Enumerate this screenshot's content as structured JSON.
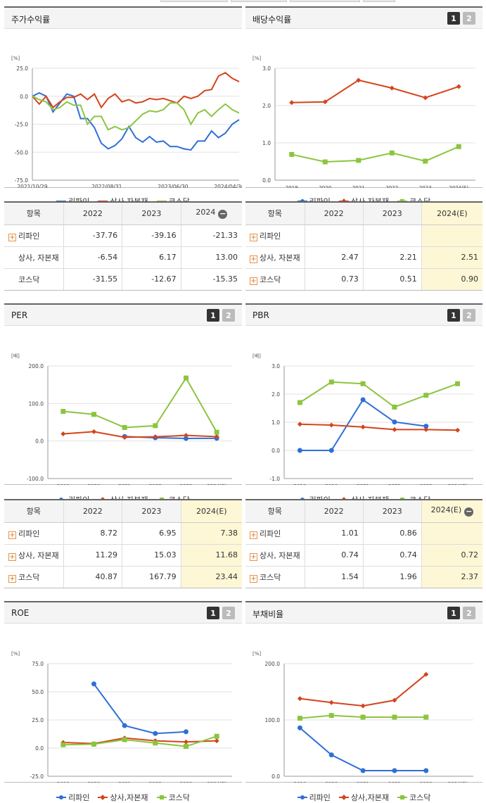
{
  "colors": {
    "series1": "#2f6fd6",
    "series2": "#d4441c",
    "series3": "#8bc53f"
  },
  "series_names": [
    "리파인",
    "상사,자본재",
    "코스닥"
  ],
  "tabs": [
    "1",
    "2"
  ],
  "charts": {
    "stock": {
      "title": "주가수익률",
      "unit": "[%]",
      "chart_data": {
        "type": "line",
        "ylim": [
          -75,
          25
        ],
        "yticks": [
          "25.0",
          "0.0",
          "-25.0",
          "-50.0",
          "-75.0"
        ],
        "xticks": [
          "2021/10/29",
          "2022/08/31",
          "2023/06/30",
          "2024/04/30"
        ],
        "series": [
          {
            "name": "리파인",
            "values": [
              0,
              3,
              0,
              -14,
              -6,
              2,
              0,
              -20,
              -20,
              -28,
              -42,
              -47,
              -44,
              -38,
              -27,
              -37,
              -41,
              -36,
              -41,
              -40,
              -45,
              -45,
              -47,
              -48,
              -40,
              -40,
              -31,
              -37,
              -33,
              -25,
              -21
            ]
          },
          {
            "name": "상사,자본재",
            "values": [
              0,
              -7,
              0,
              -10,
              -5,
              -1,
              -1,
              2,
              -3,
              2,
              -10,
              -2,
              2,
              -5,
              -3,
              -6,
              -5,
              -2,
              -3,
              -2,
              -4,
              -6,
              0,
              -2,
              0,
              5,
              6,
              18,
              21,
              16,
              13
            ]
          },
          {
            "name": "코스닥",
            "values": [
              0,
              -3,
              -5,
              -12,
              -10,
              -5,
              -8,
              -8,
              -25,
              -18,
              -18,
              -30,
              -27,
              -30,
              -28,
              -22,
              -16,
              -13,
              -14,
              -12,
              -6,
              -6,
              -12,
              -25,
              -15,
              -12,
              -18,
              -12,
              -7,
              -12,
              -15
            ]
          }
        ]
      }
    },
    "dividend": {
      "title": "배당수익률",
      "unit": "[%]",
      "chart_data": {
        "type": "line",
        "categories": [
          "2019",
          "2020",
          "2021",
          "2022",
          "2023",
          "2024(E)"
        ],
        "ylim": [
          0,
          3
        ],
        "yticks": [
          "3.0",
          "2.0",
          "1.0",
          "0.0"
        ],
        "series": [
          {
            "name": "리파인",
            "values": [
              null,
              null,
              null,
              null,
              null,
              null
            ]
          },
          {
            "name": "상사,자본재",
            "values": [
              2.08,
              2.1,
              2.68,
              2.47,
              2.21,
              2.51
            ]
          },
          {
            "name": "코스닥",
            "values": [
              0.69,
              0.49,
              0.53,
              0.73,
              0.51,
              0.9
            ]
          }
        ]
      }
    },
    "per": {
      "title": "PER",
      "unit": "[배]",
      "chart_data": {
        "type": "line",
        "categories": [
          "2019",
          "2020",
          "2021",
          "2022",
          "2023",
          "2024(E)"
        ],
        "ylim": [
          -100,
          200
        ],
        "yticks": [
          "200.0",
          "100.0",
          "0.0",
          "-100.0"
        ],
        "series": [
          {
            "name": "리파인",
            "values": [
              null,
              null,
              12,
              8.72,
              6.95,
              7.38
            ]
          },
          {
            "name": "상사,자본재",
            "values": [
              19,
              25,
              10,
              11.29,
              15.03,
              11.68
            ]
          },
          {
            "name": "코스닥",
            "values": [
              79,
              71,
              36,
              40.87,
              167.79,
              23.44
            ]
          }
        ]
      }
    },
    "pbr": {
      "title": "PBR",
      "unit": "[배]",
      "chart_data": {
        "type": "line",
        "categories": [
          "2019",
          "2020",
          "2021",
          "2022",
          "2023",
          "2024(E)"
        ],
        "ylim": [
          -1,
          3
        ],
        "yticks": [
          "3.0",
          "2.0",
          "1.0",
          "0.0",
          "-1.0"
        ],
        "series": [
          {
            "name": "리파인",
            "values": [
              0,
              0,
              1.8,
              1.01,
              0.86,
              null
            ]
          },
          {
            "name": "상사,자본재",
            "values": [
              0.93,
              0.9,
              0.83,
              0.74,
              0.74,
              0.72
            ]
          },
          {
            "name": "코스닥",
            "values": [
              1.7,
              2.43,
              2.37,
              1.54,
              1.96,
              2.37
            ]
          }
        ]
      }
    },
    "roe": {
      "title": "ROE",
      "unit": "[%]",
      "chart_data": {
        "type": "line",
        "categories": [
          "2019",
          "2020",
          "2021",
          "2022",
          "2023",
          "2024(E)"
        ],
        "ylim": [
          -25,
          75
        ],
        "yticks": [
          "75.0",
          "50.0",
          "25.0",
          "0.0",
          "-25.0"
        ],
        "series": [
          {
            "name": "리파인",
            "values": [
              null,
              57,
              20,
              13,
              14.5,
              null
            ]
          },
          {
            "name": "상사,자본재",
            "values": [
              5,
              4,
              9,
              6.5,
              5.5,
              6.5
            ]
          },
          {
            "name": "코스닥",
            "values": [
              3,
              3.5,
              7.5,
              4.5,
              1.5,
              10.5
            ]
          }
        ]
      }
    },
    "debt": {
      "title": "부채비율",
      "unit": "[%]",
      "chart_data": {
        "type": "line",
        "categories": [
          "2019",
          "2020",
          "2021",
          "2022",
          "2023",
          "2024(E)"
        ],
        "ylim": [
          0,
          200
        ],
        "yticks": [
          "200.0",
          "100.0",
          "0.0"
        ],
        "series": [
          {
            "name": "리파인",
            "values": [
              86,
              38,
              10,
              10,
              10,
              null
            ]
          },
          {
            "name": "상사,자본재",
            "values": [
              138,
              131,
              125,
              135,
              181,
              null
            ]
          },
          {
            "name": "코스닥",
            "values": [
              103,
              108,
              105,
              105,
              105,
              null
            ]
          }
        ]
      }
    }
  },
  "tables": {
    "stock": {
      "headers": [
        "항목",
        "2022",
        "2023",
        "2024"
      ],
      "rows": [
        {
          "label": "리파인",
          "plus": true,
          "values": [
            "-37.76",
            "-39.16",
            "-21.33"
          ]
        },
        {
          "label": "상사, 자본재",
          "plus": false,
          "values": [
            "-6.54",
            "6.17",
            "13.00"
          ]
        },
        {
          "label": "코스닥",
          "plus": false,
          "values": [
            "-31.55",
            "-12.67",
            "-15.35"
          ]
        }
      ]
    },
    "dividend": {
      "headers": [
        "항목",
        "2022",
        "2023",
        "2024(E)"
      ],
      "rows": [
        {
          "label": "리파인",
          "plus": true,
          "values": [
            "",
            "",
            ""
          ]
        },
        {
          "label": "상사, 자본재",
          "plus": true,
          "values": [
            "2.47",
            "2.21",
            "2.51"
          ]
        },
        {
          "label": "코스닥",
          "plus": true,
          "values": [
            "0.73",
            "0.51",
            "0.90"
          ]
        }
      ]
    },
    "per": {
      "headers": [
        "항목",
        "2022",
        "2023",
        "2024(E)"
      ],
      "rows": [
        {
          "label": "리파인",
          "plus": true,
          "values": [
            "8.72",
            "6.95",
            "7.38"
          ]
        },
        {
          "label": "상사, 자본재",
          "plus": true,
          "values": [
            "11.29",
            "15.03",
            "11.68"
          ]
        },
        {
          "label": "코스닥",
          "plus": true,
          "values": [
            "40.87",
            "167.79",
            "23.44"
          ]
        }
      ]
    },
    "pbr": {
      "headers": [
        "항목",
        "2022",
        "2023",
        "2024(E)"
      ],
      "rows": [
        {
          "label": "리파인",
          "plus": true,
          "values": [
            "1.01",
            "0.86",
            ""
          ]
        },
        {
          "label": "상사, 자본재",
          "plus": true,
          "values": [
            "0.74",
            "0.74",
            "0.72"
          ]
        },
        {
          "label": "코스닥",
          "plus": true,
          "values": [
            "1.54",
            "1.96",
            "2.37"
          ]
        }
      ]
    }
  }
}
